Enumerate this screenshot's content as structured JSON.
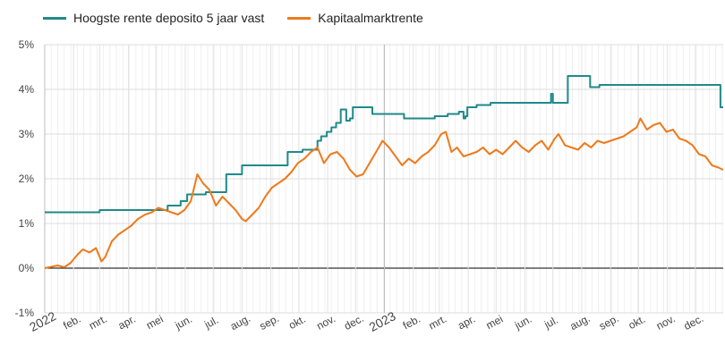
{
  "chart_data": {
    "type": "line",
    "title": "",
    "xlabel": "",
    "ylabel": "",
    "ylim": [
      -1,
      5
    ],
    "xlim": [
      "2022-01-01",
      "2023-12-31"
    ],
    "grid": true,
    "legend_position": "top-left",
    "y_ticks": [
      {
        "value": 5,
        "label": "5%"
      },
      {
        "value": 4,
        "label": "4%"
      },
      {
        "value": 3,
        "label": "3%"
      },
      {
        "value": 2,
        "label": "2%"
      },
      {
        "value": 1,
        "label": "1%"
      },
      {
        "value": 0,
        "label": "0%"
      },
      {
        "value": -1,
        "label": "-1%"
      }
    ],
    "x_ticks": [
      {
        "date": "2022-01-01",
        "label": "2022",
        "major": true
      },
      {
        "date": "2022-02-01",
        "label": "feb."
      },
      {
        "date": "2022-03-01",
        "label": "mrt."
      },
      {
        "date": "2022-04-01",
        "label": "apr."
      },
      {
        "date": "2022-05-01",
        "label": "mei"
      },
      {
        "date": "2022-06-01",
        "label": "jun."
      },
      {
        "date": "2022-07-01",
        "label": "jul."
      },
      {
        "date": "2022-08-01",
        "label": "aug."
      },
      {
        "date": "2022-09-01",
        "label": "sep."
      },
      {
        "date": "2022-10-01",
        "label": "okt."
      },
      {
        "date": "2022-11-01",
        "label": "nov."
      },
      {
        "date": "2022-12-01",
        "label": "dec."
      },
      {
        "date": "2023-01-01",
        "label": "2023",
        "major": true
      },
      {
        "date": "2023-02-01",
        "label": "feb."
      },
      {
        "date": "2023-03-01",
        "label": "mrt."
      },
      {
        "date": "2023-04-01",
        "label": "apr."
      },
      {
        "date": "2023-05-01",
        "label": "mei"
      },
      {
        "date": "2023-06-01",
        "label": "jun."
      },
      {
        "date": "2023-07-01",
        "label": "jul."
      },
      {
        "date": "2023-08-01",
        "label": "aug."
      },
      {
        "date": "2023-09-01",
        "label": "sep."
      },
      {
        "date": "2023-10-01",
        "label": "okt."
      },
      {
        "date": "2023-11-01",
        "label": "nov."
      },
      {
        "date": "2023-12-01",
        "label": "dec."
      }
    ],
    "series": [
      {
        "name": "Hoogste rente deposito 5 jaar vast",
        "color": "#1f8a89",
        "step": true,
        "points": [
          [
            "2022-01-01",
            1.25
          ],
          [
            "2022-03-01",
            1.3
          ],
          [
            "2022-05-13",
            1.4
          ],
          [
            "2022-05-27",
            1.5
          ],
          [
            "2022-06-03",
            1.65
          ],
          [
            "2022-06-23",
            1.7
          ],
          [
            "2022-07-15",
            2.1
          ],
          [
            "2022-08-01",
            2.3
          ],
          [
            "2022-09-19",
            2.6
          ],
          [
            "2022-10-05",
            2.65
          ],
          [
            "2022-10-21",
            2.85
          ],
          [
            "2022-10-25",
            2.95
          ],
          [
            "2022-10-31",
            3.05
          ],
          [
            "2022-11-05",
            3.15
          ],
          [
            "2022-11-10",
            3.25
          ],
          [
            "2022-11-15",
            3.55
          ],
          [
            "2022-11-21",
            3.3
          ],
          [
            "2022-11-25",
            3.35
          ],
          [
            "2022-11-28",
            3.6
          ],
          [
            "2022-12-19",
            3.45
          ],
          [
            "2023-01-22",
            3.35
          ],
          [
            "2023-02-24",
            3.4
          ],
          [
            "2023-03-10",
            3.45
          ],
          [
            "2023-03-22",
            3.5
          ],
          [
            "2023-03-27",
            3.35
          ],
          [
            "2023-03-29",
            3.4
          ],
          [
            "2023-03-31",
            3.6
          ],
          [
            "2023-04-10",
            3.65
          ],
          [
            "2023-04-25",
            3.7
          ],
          [
            "2023-06-29",
            3.9
          ],
          [
            "2023-07-01",
            3.7
          ],
          [
            "2023-07-17",
            4.3
          ],
          [
            "2023-08-10",
            4.05
          ],
          [
            "2023-08-20",
            4.1
          ],
          [
            "2023-12-28",
            3.6
          ],
          [
            "2023-12-31",
            3.6
          ]
        ]
      },
      {
        "name": "Kapitaalmarktrente",
        "color": "#ee7a1c",
        "step": false,
        "points": [
          [
            "2022-01-01",
            0.0
          ],
          [
            "2022-01-08",
            0.03
          ],
          [
            "2022-01-15",
            0.06
          ],
          [
            "2022-01-22",
            0.02
          ],
          [
            "2022-01-29",
            0.12
          ],
          [
            "2022-02-05",
            0.3
          ],
          [
            "2022-02-11",
            0.42
          ],
          [
            "2022-02-18",
            0.35
          ],
          [
            "2022-02-25",
            0.45
          ],
          [
            "2022-03-03",
            0.15
          ],
          [
            "2022-03-07",
            0.25
          ],
          [
            "2022-03-14",
            0.6
          ],
          [
            "2022-03-21",
            0.75
          ],
          [
            "2022-03-28",
            0.85
          ],
          [
            "2022-04-04",
            0.95
          ],
          [
            "2022-04-11",
            1.1
          ],
          [
            "2022-04-19",
            1.2
          ],
          [
            "2022-04-26",
            1.25
          ],
          [
            "2022-05-03",
            1.35
          ],
          [
            "2022-05-10",
            1.3
          ],
          [
            "2022-05-17",
            1.25
          ],
          [
            "2022-05-24",
            1.2
          ],
          [
            "2022-05-31",
            1.3
          ],
          [
            "2022-06-07",
            1.5
          ],
          [
            "2022-06-14",
            2.1
          ],
          [
            "2022-06-20",
            1.9
          ],
          [
            "2022-06-27",
            1.75
          ],
          [
            "2022-07-04",
            1.4
          ],
          [
            "2022-07-11",
            1.6
          ],
          [
            "2022-07-18",
            1.45
          ],
          [
            "2022-07-25",
            1.3
          ],
          [
            "2022-08-01",
            1.1
          ],
          [
            "2022-08-05",
            1.05
          ],
          [
            "2022-08-12",
            1.2
          ],
          [
            "2022-08-19",
            1.35
          ],
          [
            "2022-08-26",
            1.6
          ],
          [
            "2022-09-02",
            1.8
          ],
          [
            "2022-09-09",
            1.9
          ],
          [
            "2022-09-16",
            2.0
          ],
          [
            "2022-09-23",
            2.15
          ],
          [
            "2022-09-30",
            2.35
          ],
          [
            "2022-10-07",
            2.45
          ],
          [
            "2022-10-14",
            2.6
          ],
          [
            "2022-10-21",
            2.7
          ],
          [
            "2022-10-28",
            2.35
          ],
          [
            "2022-11-04",
            2.55
          ],
          [
            "2022-11-11",
            2.6
          ],
          [
            "2022-11-18",
            2.45
          ],
          [
            "2022-11-25",
            2.2
          ],
          [
            "2022-12-02",
            2.05
          ],
          [
            "2022-12-09",
            2.1
          ],
          [
            "2022-12-16",
            2.35
          ],
          [
            "2022-12-23",
            2.6
          ],
          [
            "2022-12-30",
            2.85
          ],
          [
            "2023-01-06",
            2.7
          ],
          [
            "2023-01-13",
            2.5
          ],
          [
            "2023-01-20",
            2.3
          ],
          [
            "2023-01-27",
            2.45
          ],
          [
            "2023-02-03",
            2.35
          ],
          [
            "2023-02-10",
            2.5
          ],
          [
            "2023-02-17",
            2.6
          ],
          [
            "2023-02-24",
            2.75
          ],
          [
            "2023-03-03",
            3.0
          ],
          [
            "2023-03-08",
            3.05
          ],
          [
            "2023-03-14",
            2.6
          ],
          [
            "2023-03-20",
            2.7
          ],
          [
            "2023-03-27",
            2.5
          ],
          [
            "2023-04-03",
            2.55
          ],
          [
            "2023-04-10",
            2.6
          ],
          [
            "2023-04-17",
            2.7
          ],
          [
            "2023-04-24",
            2.55
          ],
          [
            "2023-05-01",
            2.65
          ],
          [
            "2023-05-08",
            2.55
          ],
          [
            "2023-05-15",
            2.7
          ],
          [
            "2023-05-22",
            2.85
          ],
          [
            "2023-05-29",
            2.7
          ],
          [
            "2023-06-05",
            2.6
          ],
          [
            "2023-06-12",
            2.75
          ],
          [
            "2023-06-19",
            2.85
          ],
          [
            "2023-06-26",
            2.65
          ],
          [
            "2023-07-03",
            2.9
          ],
          [
            "2023-07-07",
            3.0
          ],
          [
            "2023-07-14",
            2.75
          ],
          [
            "2023-07-21",
            2.7
          ],
          [
            "2023-07-28",
            2.65
          ],
          [
            "2023-08-04",
            2.8
          ],
          [
            "2023-08-11",
            2.7
          ],
          [
            "2023-08-18",
            2.85
          ],
          [
            "2023-08-25",
            2.8
          ],
          [
            "2023-09-01",
            2.85
          ],
          [
            "2023-09-08",
            2.9
          ],
          [
            "2023-09-15",
            2.95
          ],
          [
            "2023-09-22",
            3.05
          ],
          [
            "2023-09-29",
            3.15
          ],
          [
            "2023-10-03",
            3.35
          ],
          [
            "2023-10-10",
            3.1
          ],
          [
            "2023-10-17",
            3.2
          ],
          [
            "2023-10-24",
            3.25
          ],
          [
            "2023-10-31",
            3.05
          ],
          [
            "2023-11-07",
            3.1
          ],
          [
            "2023-11-14",
            2.9
          ],
          [
            "2023-11-21",
            2.85
          ],
          [
            "2023-11-28",
            2.75
          ],
          [
            "2023-12-05",
            2.55
          ],
          [
            "2023-12-12",
            2.5
          ],
          [
            "2023-12-19",
            2.3
          ],
          [
            "2023-12-26",
            2.25
          ],
          [
            "2023-12-31",
            2.2
          ]
        ]
      }
    ]
  }
}
